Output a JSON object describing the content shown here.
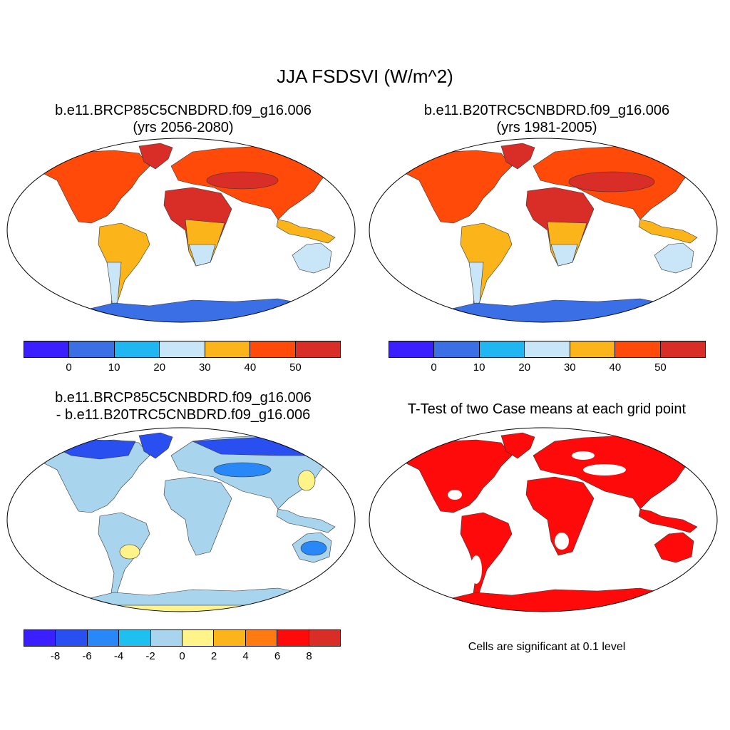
{
  "title": "JJA FSDSVI (W/m^2)",
  "panels": [
    {
      "line1": "b.e11.BRCP85C5CNBDRD.f09_g16.006",
      "line2": "(yrs 2056-2080)"
    },
    {
      "line1": "b.e11.B20TRC5CNBDRD.f09_g16.006",
      "line2": "(yrs 1981-2005)"
    },
    {
      "line1": "b.e11.BRCP85C5CNBDRD.f09_g16.006",
      "line2": "- b.e11.B20TRC5CNBDRD.f09_g16.006"
    },
    {
      "line1": "T-Test of two Case means at each grid point"
    }
  ],
  "significance_note": "Cells are significant at 0.1 level",
  "colorbars": {
    "absolute": {
      "colors": [
        "#3b1fff",
        "#3a6fe6",
        "#1fb6f2",
        "#c8e6f7",
        "#fbb419",
        "#ff4a0a",
        "#d82e27"
      ],
      "labels": [
        "0",
        "10",
        "20",
        "30",
        "40",
        "50"
      ]
    },
    "difference": {
      "colors": [
        "#3b1fff",
        "#2a4ff0",
        "#2888f7",
        "#1ec0f0",
        "#a8d4ee",
        "#fff38a",
        "#fbb419",
        "#ff7a10",
        "#ff0a0a",
        "#d82e27"
      ],
      "labels": [
        "-8",
        "-6",
        "-4",
        "-2",
        "0",
        "2",
        "4",
        "6",
        "8"
      ]
    }
  },
  "map_colors": {
    "future": {
      "north": "#ff4a0a",
      "hot": "#d82e27",
      "tropic": "#fbb419",
      "south": "#c8e6f7",
      "antarctic": "#3a6fe6"
    },
    "historical": {
      "north": "#ff4a0a",
      "hot": "#d82e27",
      "tropic": "#fbb419",
      "south": "#c8e6f7",
      "antarctic": "#3a6fe6"
    },
    "difference": {
      "base": "#a8d4ee",
      "arctic": "#2a4ff0",
      "patch": "#2888f7",
      "warm": "#fff38a",
      "antarctic": "#a8d4ee",
      "rim": "#fff38a"
    },
    "ttest": {
      "sig": "#ff0a0a"
    }
  }
}
